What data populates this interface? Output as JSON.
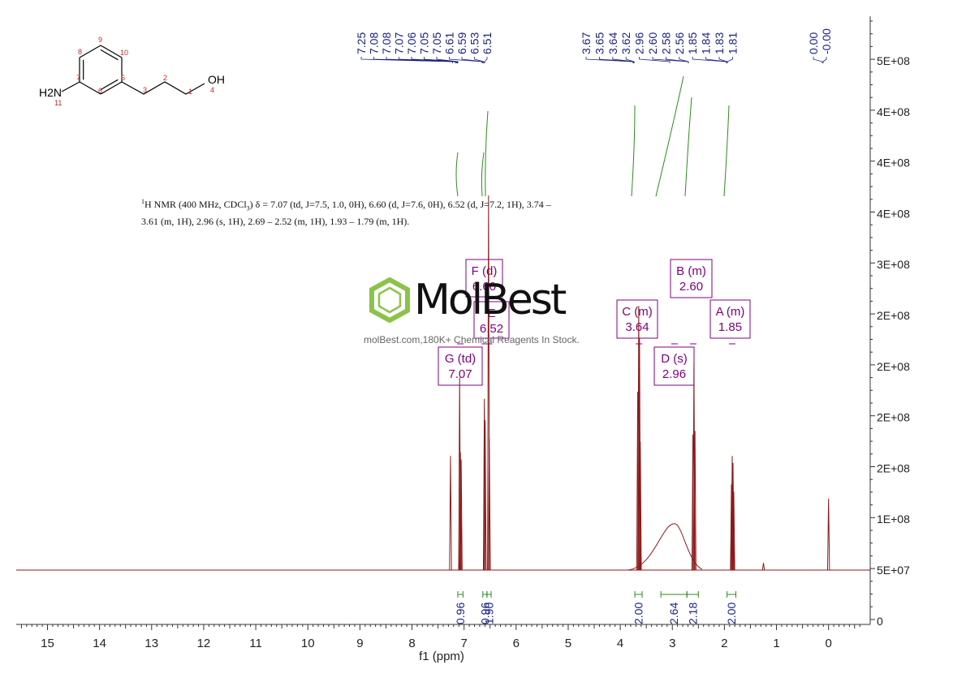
{
  "chart_data": {
    "type": "line",
    "xlabel": "f1 (ppm)",
    "x_ticks": [
      "15",
      "14",
      "13",
      "12",
      "11",
      "10",
      "9",
      "8",
      "7",
      "6",
      "5",
      "4",
      "3",
      "2",
      "1",
      "0"
    ],
    "x_range": [
      15.6,
      -0.8
    ],
    "y_ticks": [
      "5E+08",
      "4E+08",
      "4E+08",
      "4E+08",
      "3E+08",
      "2E+08",
      "2E+08",
      "2E+08",
      "2E+08",
      "1E+08",
      "5E+07",
      "0"
    ],
    "peak_labels_group1": [
      "7.25",
      "7.08",
      "7.08",
      "7.07",
      "7.06",
      "7.05",
      "7.05",
      "6.61",
      "6.59",
      "6.53",
      "6.51"
    ],
    "peak_labels_group2": [
      "3.67",
      "3.65",
      "3.64",
      "3.62",
      "2.96",
      "2.60",
      "2.58",
      "2.56",
      "1.85",
      "1.84",
      "1.83",
      "1.81"
    ],
    "peak_labels_group3": [
      "0.00",
      "-0.00"
    ],
    "peaks": [
      {
        "ppm": 7.26,
        "height": 0.32
      },
      {
        "ppm": 7.085,
        "height": 0.54
      },
      {
        "ppm": 7.07,
        "height": 0.33
      },
      {
        "ppm": 7.055,
        "height": 0.31
      },
      {
        "ppm": 6.61,
        "height": 0.48
      },
      {
        "ppm": 6.595,
        "height": 0.42
      },
      {
        "ppm": 6.53,
        "height": 1.05
      },
      {
        "ppm": 6.515,
        "height": 0.37
      },
      {
        "ppm": 3.665,
        "height": 0.5
      },
      {
        "ppm": 3.645,
        "height": 0.74
      },
      {
        "ppm": 3.63,
        "height": 0.65
      },
      {
        "ppm": 3.615,
        "height": 0.36
      },
      {
        "ppm": 2.605,
        "height": 0.38
      },
      {
        "ppm": 2.585,
        "height": 0.58
      },
      {
        "ppm": 2.565,
        "height": 0.39
      },
      {
        "ppm": 1.865,
        "height": 0.24
      },
      {
        "ppm": 1.85,
        "height": 0.32
      },
      {
        "ppm": 1.835,
        "height": 0.3
      },
      {
        "ppm": 1.82,
        "height": 0.22
      },
      {
        "ppm": 1.25,
        "height": 0.02
      },
      {
        "ppm": 0.0,
        "height": 0.2
      }
    ],
    "broad_peak": {
      "ppm": 2.96,
      "height": 0.13
    },
    "multiplets": [
      {
        "letter": "F (d)",
        "value": "6.60",
        "ppm": 6.6
      },
      {
        "letter": "E",
        "value": "6.52",
        "ppm": 6.52
      },
      {
        "letter": "G (td)",
        "value": "7.07",
        "ppm": 7.07
      },
      {
        "letter": "C (m)",
        "value": "3.64",
        "ppm": 3.64
      },
      {
        "letter": "B (m)",
        "value": "2.60",
        "ppm": 2.6
      },
      {
        "letter": "D (s)",
        "value": "2.96",
        "ppm": 2.96
      },
      {
        "letter": "A (m)",
        "value": "1.85",
        "ppm": 1.85
      }
    ],
    "integrals": [
      {
        "value": "0.96",
        "from": 7.12,
        "to": 7.02
      },
      {
        "value": "0.96",
        "from": 6.64,
        "to": 6.56
      },
      {
        "value": "1.90",
        "from": 6.56,
        "to": 6.48
      },
      {
        "value": "2.00",
        "from": 3.72,
        "to": 3.58
      },
      {
        "value": "2.64",
        "from": 3.22,
        "to": 2.72
      },
      {
        "value": "2.18",
        "from": 2.72,
        "to": 2.5
      },
      {
        "value": "2.00",
        "from": 1.95,
        "to": 1.78
      }
    ]
  },
  "structure": {
    "atom_labels": [
      "H2N",
      "11",
      "7",
      "6",
      "5",
      "3",
      "2",
      "1",
      "4",
      "OH",
      "8",
      "9",
      "10"
    ]
  },
  "description_text": {
    "line1_prefix": "H NMR (400 MHz, CDCl",
    "line1_rest": ") δ = 7.07 (td, J=7.5, 1.0, 0H), 6.60 (d, J=7.6, 0H), 6.52 (d, J=7.2, 1H), 3.74 –",
    "line2": "3.61 (m, 1H), 2.96 (s, 1H), 2.69 – 2.52 (m, 1H), 1.93 – 1.79 (m, 1H)."
  },
  "watermark": {
    "name": "MolBest",
    "tagline": "molBest.com,180K+ Chemical Reagents In Stock."
  },
  "colors": {
    "spectrum": "#8b1a1a",
    "peak_labels": "#1a237e",
    "integral": "#2e8b1e",
    "multiplet": "#800080",
    "watermark_green": "#8bc34a"
  }
}
